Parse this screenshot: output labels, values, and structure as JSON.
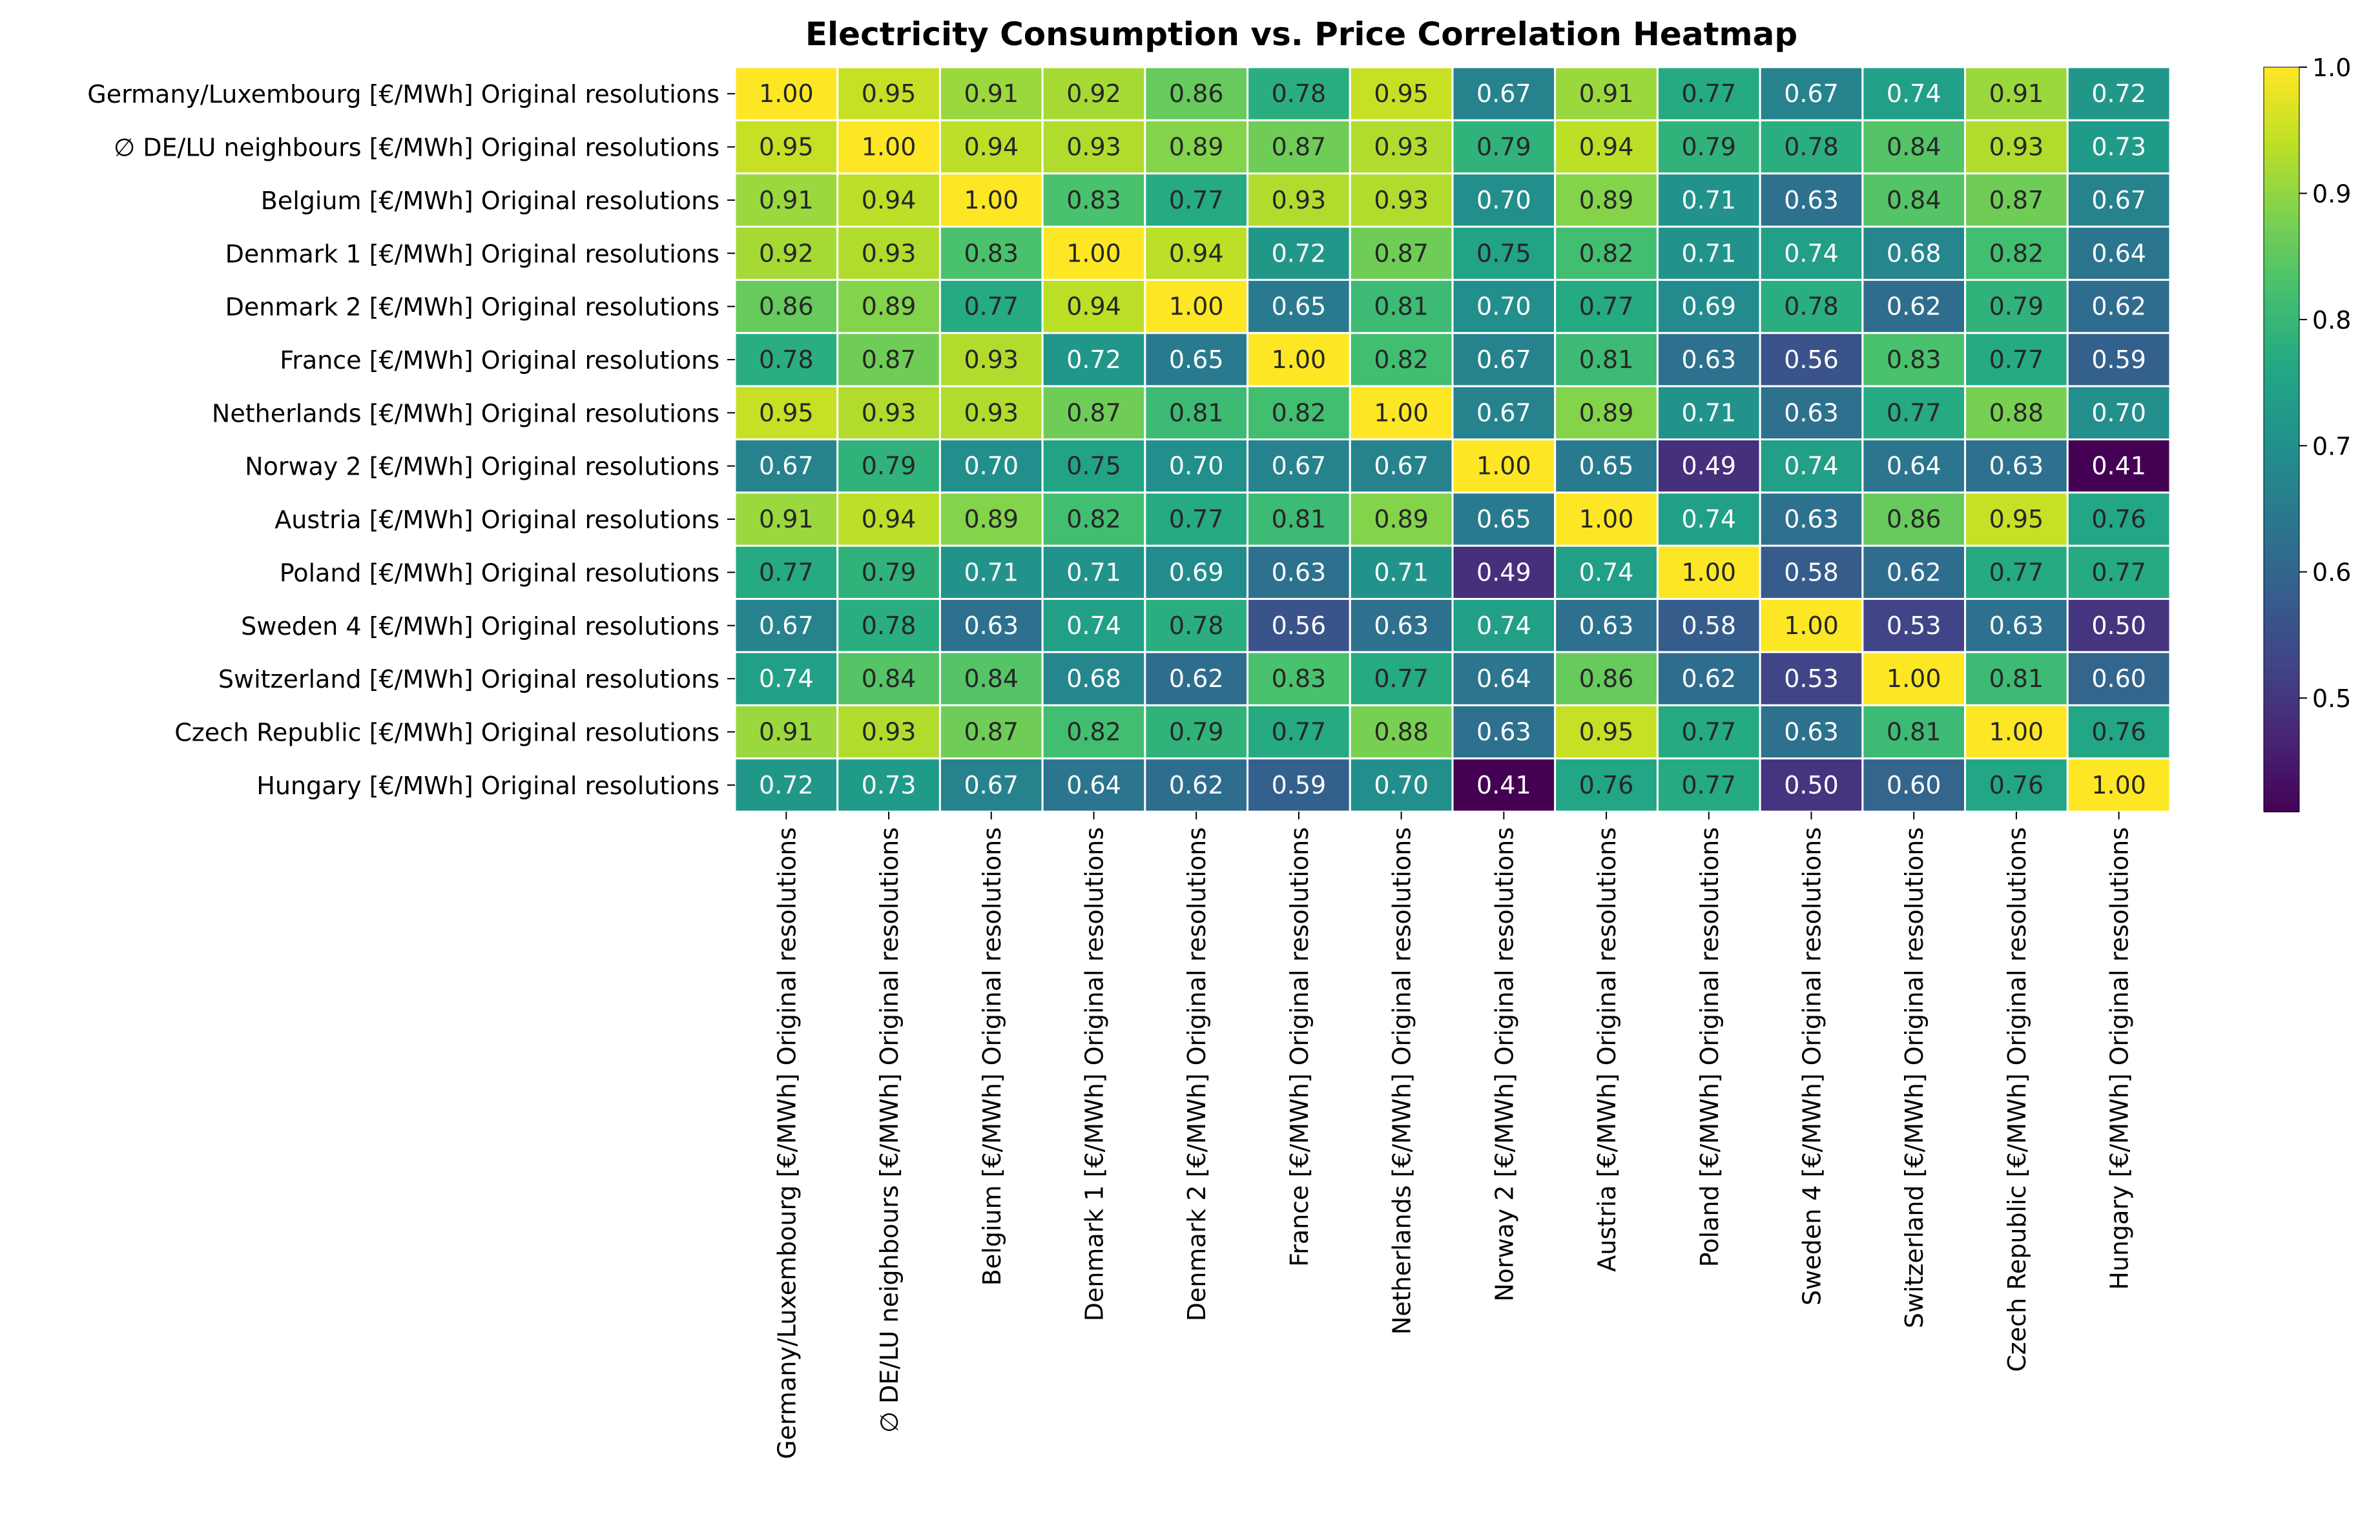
{
  "chart_data": {
    "type": "heatmap",
    "title": "Electricity Consumption vs. Price Correlation Heatmap",
    "labels": [
      "Germany/Luxembourg [€/MWh] Original resolutions",
      "∅ DE/LU neighbours [€/MWh] Original resolutions",
      "Belgium [€/MWh] Original resolutions",
      "Denmark 1 [€/MWh] Original resolutions",
      "Denmark 2 [€/MWh] Original resolutions",
      "France [€/MWh] Original resolutions",
      "Netherlands [€/MWh] Original resolutions",
      "Norway 2 [€/MWh] Original resolutions",
      "Austria [€/MWh] Original resolutions",
      "Poland [€/MWh] Original resolutions",
      "Sweden 4 [€/MWh] Original resolutions",
      "Switzerland [€/MWh] Original resolutions",
      "Czech Republic [€/MWh] Original resolutions",
      "Hungary [€/MWh] Original resolutions"
    ],
    "matrix": [
      [
        1.0,
        0.95,
        0.91,
        0.92,
        0.86,
        0.78,
        0.95,
        0.67,
        0.91,
        0.77,
        0.67,
        0.74,
        0.91,
        0.72
      ],
      [
        0.95,
        1.0,
        0.94,
        0.93,
        0.89,
        0.87,
        0.93,
        0.79,
        0.94,
        0.79,
        0.78,
        0.84,
        0.93,
        0.73
      ],
      [
        0.91,
        0.94,
        1.0,
        0.83,
        0.77,
        0.93,
        0.93,
        0.7,
        0.89,
        0.71,
        0.63,
        0.84,
        0.87,
        0.67
      ],
      [
        0.92,
        0.93,
        0.83,
        1.0,
        0.94,
        0.72,
        0.87,
        0.75,
        0.82,
        0.71,
        0.74,
        0.68,
        0.82,
        0.64
      ],
      [
        0.86,
        0.89,
        0.77,
        0.94,
        1.0,
        0.65,
        0.81,
        0.7,
        0.77,
        0.69,
        0.78,
        0.62,
        0.79,
        0.62
      ],
      [
        0.78,
        0.87,
        0.93,
        0.72,
        0.65,
        1.0,
        0.82,
        0.67,
        0.81,
        0.63,
        0.56,
        0.83,
        0.77,
        0.59
      ],
      [
        0.95,
        0.93,
        0.93,
        0.87,
        0.81,
        0.82,
        1.0,
        0.67,
        0.89,
        0.71,
        0.63,
        0.77,
        0.88,
        0.7
      ],
      [
        0.67,
        0.79,
        0.7,
        0.75,
        0.7,
        0.67,
        0.67,
        1.0,
        0.65,
        0.49,
        0.74,
        0.64,
        0.63,
        0.41
      ],
      [
        0.91,
        0.94,
        0.89,
        0.82,
        0.77,
        0.81,
        0.89,
        0.65,
        1.0,
        0.74,
        0.63,
        0.86,
        0.95,
        0.76
      ],
      [
        0.77,
        0.79,
        0.71,
        0.71,
        0.69,
        0.63,
        0.71,
        0.49,
        0.74,
        1.0,
        0.58,
        0.62,
        0.77,
        0.77
      ],
      [
        0.67,
        0.78,
        0.63,
        0.74,
        0.78,
        0.56,
        0.63,
        0.74,
        0.63,
        0.58,
        1.0,
        0.53,
        0.63,
        0.5
      ],
      [
        0.74,
        0.84,
        0.84,
        0.68,
        0.62,
        0.83,
        0.77,
        0.64,
        0.86,
        0.62,
        0.53,
        1.0,
        0.81,
        0.6
      ],
      [
        0.91,
        0.93,
        0.87,
        0.82,
        0.79,
        0.77,
        0.88,
        0.63,
        0.95,
        0.77,
        0.63,
        0.81,
        1.0,
        0.76
      ],
      [
        0.72,
        0.73,
        0.67,
        0.64,
        0.62,
        0.59,
        0.7,
        0.41,
        0.76,
        0.77,
        0.5,
        0.6,
        0.76,
        1.0
      ]
    ],
    "colormap": "viridis",
    "vmin": 0.41,
    "vmax": 1.0,
    "colorbar_ticks": [
      "0.5",
      "0.6",
      "0.7",
      "0.8",
      "0.9",
      "1.0"
    ],
    "colorbar_tick_values": [
      0.5,
      0.6,
      0.7,
      0.8,
      0.9,
      1.0
    ],
    "annotation_format": "2 decimals",
    "grid": true,
    "grid_color": "#ffffff",
    "legend": "colorbar right",
    "xlabel": "",
    "ylabel": ""
  }
}
